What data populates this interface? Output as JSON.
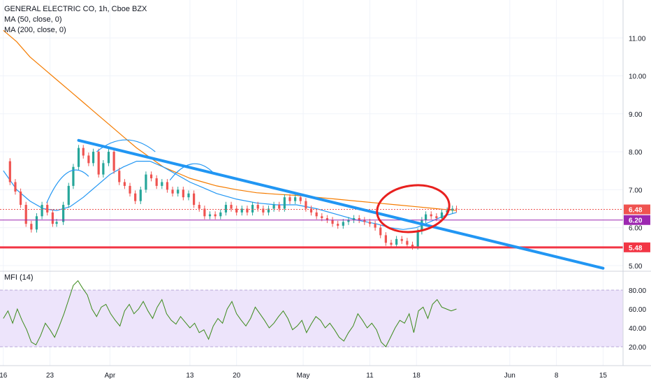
{
  "header": {
    "symbol_line": "GENERAL ELECTRIC CO, 1h, Cboe BZX",
    "ma50_label": "MA (50, close, 0)",
    "ma200_label": "MA (200, close, 0)",
    "mfi_label": "MFI (14)"
  },
  "colors": {
    "up": "#26a69a",
    "down": "#ef5350",
    "ma50": "#2196f3",
    "ma200": "#f57c00",
    "trendline": "#2196f3",
    "support": "#f23645",
    "purple": "#9c27b0",
    "mfi_line": "#3b8a1a",
    "mfi_band": "#ede4fb",
    "circle": "#e8201e"
  },
  "chart_data": [
    {
      "type": "candlestick",
      "ylim": [
        4.85,
        12.0
      ],
      "y_ticks": [
        "5.00",
        "6.00",
        "7.00",
        "8.00",
        "9.00",
        "10.00",
        "11.00"
      ],
      "y_tick_values": [
        5,
        6,
        7,
        8,
        9,
        10,
        11
      ],
      "x_ticks": [
        "16",
        "23",
        "Apr",
        "13",
        "20",
        "May",
        "11",
        "18",
        "Jun",
        "8",
        "15"
      ],
      "x_tick_days": [
        0,
        7,
        16,
        28,
        35,
        45,
        55,
        62,
        76,
        83,
        90
      ],
      "xlim_days": [
        -0.5,
        93
      ],
      "price_labels": [
        {
          "text": "6.48",
          "value": 6.48,
          "color": "#ef5350"
        },
        {
          "text": "6.20",
          "value": 6.2,
          "color": "#9c27b0"
        },
        {
          "text": "5.48",
          "value": 5.48,
          "color": "#f23645"
        }
      ],
      "horizontal_lines": [
        {
          "name": "support",
          "value": 5.48
        },
        {
          "name": "level",
          "value": 6.2
        },
        {
          "name": "last-price",
          "value": 6.48
        }
      ],
      "trendline": {
        "from": [
          11.3,
          8.3
        ],
        "to": [
          90.0,
          4.93
        ]
      },
      "close": [
        [
          0.0,
          7.75
        ],
        [
          1.0,
          7.2
        ],
        [
          1.8,
          6.95
        ],
        [
          2.6,
          6.6
        ],
        [
          3.4,
          6.1
        ],
        [
          4.2,
          5.95
        ],
        [
          5.0,
          6.3
        ],
        [
          5.8,
          6.6
        ],
        [
          6.6,
          6.4
        ],
        [
          7.4,
          6.1
        ],
        [
          8.0,
          6.15
        ],
        [
          9.0,
          6.6
        ],
        [
          9.8,
          7.1
        ],
        [
          10.5,
          7.6
        ],
        [
          11.3,
          8.1
        ],
        [
          12.0,
          7.9
        ],
        [
          12.8,
          7.7
        ],
        [
          13.5,
          8.0
        ],
        [
          14.3,
          7.4
        ],
        [
          15.0,
          7.7
        ],
        [
          15.8,
          8.0
        ],
        [
          16.6,
          7.5
        ],
        [
          17.4,
          7.2
        ],
        [
          18.2,
          7.1
        ],
        [
          19.0,
          6.9
        ],
        [
          19.8,
          6.7
        ],
        [
          20.6,
          7.0
        ],
        [
          21.4,
          7.4
        ],
        [
          22.2,
          7.3
        ],
        [
          23.0,
          7.1
        ],
        [
          23.8,
          7.2
        ],
        [
          24.6,
          7.0
        ],
        [
          25.4,
          6.9
        ],
        [
          26.2,
          7.0
        ],
        [
          27.0,
          6.8
        ],
        [
          27.8,
          6.9
        ],
        [
          28.6,
          6.6
        ],
        [
          29.4,
          6.5
        ],
        [
          30.2,
          6.3
        ],
        [
          31.0,
          6.35
        ],
        [
          31.8,
          6.3
        ],
        [
          32.6,
          6.4
        ],
        [
          33.4,
          6.6
        ],
        [
          34.2,
          6.5
        ],
        [
          35.0,
          6.4
        ],
        [
          35.8,
          6.5
        ],
        [
          36.6,
          6.4
        ],
        [
          37.4,
          6.6
        ],
        [
          38.2,
          6.5
        ],
        [
          39.0,
          6.4
        ],
        [
          39.8,
          6.5
        ],
        [
          40.6,
          6.6
        ],
        [
          41.4,
          6.5
        ],
        [
          42.2,
          6.8
        ],
        [
          43.0,
          6.7
        ],
        [
          43.8,
          6.8
        ],
        [
          44.6,
          6.7
        ],
        [
          45.4,
          6.5
        ],
        [
          46.2,
          6.4
        ],
        [
          47.0,
          6.3
        ],
        [
          47.8,
          6.25
        ],
        [
          48.6,
          6.2
        ],
        [
          49.4,
          6.1
        ],
        [
          50.2,
          6.05
        ],
        [
          51.0,
          6.15
        ],
        [
          51.8,
          6.2
        ],
        [
          52.6,
          6.25
        ],
        [
          53.4,
          6.2
        ],
        [
          54.2,
          6.15
        ],
        [
          55.0,
          6.1
        ],
        [
          55.8,
          6.0
        ],
        [
          56.6,
          5.8
        ],
        [
          57.4,
          5.6
        ],
        [
          58.2,
          5.55
        ],
        [
          59.0,
          5.7
        ],
        [
          59.8,
          5.65
        ],
        [
          60.6,
          5.55
        ],
        [
          61.4,
          5.5
        ],
        [
          62.2,
          5.9
        ],
        [
          62.8,
          6.2
        ],
        [
          63.4,
          6.35
        ],
        [
          64.2,
          6.3
        ],
        [
          65.0,
          6.25
        ],
        [
          65.8,
          6.4
        ],
        [
          66.6,
          6.45
        ],
        [
          67.4,
          6.5
        ],
        [
          68.0,
          6.48
        ]
      ],
      "ma50": [
        [
          0.0,
          7.5
        ],
        [
          2.0,
          7.0
        ],
        [
          4.0,
          6.7
        ],
        [
          6.0,
          6.5
        ],
        [
          8.0,
          6.45
        ],
        [
          10.0,
          6.55
        ],
        [
          12.0,
          6.8
        ],
        [
          14.0,
          7.1
        ],
        [
          16.0,
          7.4
        ],
        [
          18.0,
          7.6
        ],
        [
          20.0,
          7.75
        ],
        [
          22.0,
          7.75
        ],
        [
          24.0,
          7.6
        ],
        [
          26.0,
          7.4
        ],
        [
          28.0,
          7.2
        ],
        [
          30.0,
          7.05
        ],
        [
          32.0,
          6.9
        ],
        [
          35.0,
          6.75
        ],
        [
          38.0,
          6.65
        ],
        [
          41.0,
          6.6
        ],
        [
          44.0,
          6.6
        ],
        [
          47.0,
          6.5
        ],
        [
          50.0,
          6.35
        ],
        [
          53.0,
          6.2
        ],
        [
          56.0,
          6.1
        ],
        [
          58.0,
          6.0
        ],
        [
          60.0,
          5.95
        ],
        [
          62.0,
          6.0
        ],
        [
          64.0,
          6.15
        ],
        [
          66.0,
          6.3
        ],
        [
          68.0,
          6.4
        ]
      ],
      "ma200": [
        [
          0.0,
          11.2
        ],
        [
          2.0,
          10.9
        ],
        [
          4.0,
          10.5
        ],
        [
          6.0,
          10.2
        ],
        [
          8.0,
          9.9
        ],
        [
          10.0,
          9.6
        ],
        [
          12.0,
          9.3
        ],
        [
          14.0,
          9.0
        ],
        [
          16.0,
          8.7
        ],
        [
          18.0,
          8.4
        ],
        [
          20.0,
          8.1
        ],
        [
          22.0,
          7.85
        ],
        [
          24.0,
          7.6
        ],
        [
          26.0,
          7.45
        ],
        [
          28.0,
          7.3
        ],
        [
          30.0,
          7.2
        ],
        [
          32.0,
          7.1
        ],
        [
          35.0,
          7.0
        ],
        [
          38.0,
          6.92
        ],
        [
          41.0,
          6.88
        ],
        [
          44.0,
          6.85
        ],
        [
          47.0,
          6.8
        ],
        [
          50.0,
          6.75
        ],
        [
          53.0,
          6.7
        ],
        [
          56.0,
          6.65
        ],
        [
          59.0,
          6.6
        ],
        [
          62.0,
          6.55
        ],
        [
          65.0,
          6.5
        ],
        [
          68.0,
          6.45
        ]
      ]
    },
    {
      "type": "line",
      "name": "MFI (14)",
      "ylim": [
        0,
        100
      ],
      "y_ticks": [
        "20.00",
        "40.00",
        "60.00",
        "80.00"
      ],
      "y_tick_values": [
        20,
        40,
        60,
        80
      ],
      "band": [
        20,
        80
      ],
      "values": [
        [
          0.0,
          50
        ],
        [
          0.7,
          58
        ],
        [
          1.4,
          45
        ],
        [
          2.1,
          60
        ],
        [
          2.8,
          48
        ],
        [
          3.5,
          38
        ],
        [
          4.2,
          25
        ],
        [
          4.9,
          22
        ],
        [
          5.6,
          32
        ],
        [
          6.3,
          45
        ],
        [
          7.0,
          38
        ],
        [
          7.7,
          30
        ],
        [
          8.4,
          42
        ],
        [
          9.1,
          55
        ],
        [
          9.8,
          70
        ],
        [
          10.5,
          85
        ],
        [
          11.2,
          90
        ],
        [
          11.9,
          82
        ],
        [
          12.6,
          75
        ],
        [
          13.3,
          60
        ],
        [
          14.0,
          52
        ],
        [
          14.7,
          62
        ],
        [
          15.4,
          65
        ],
        [
          16.1,
          55
        ],
        [
          16.8,
          48
        ],
        [
          17.5,
          42
        ],
        [
          18.2,
          58
        ],
        [
          18.9,
          65
        ],
        [
          19.6,
          55
        ],
        [
          20.3,
          60
        ],
        [
          21.0,
          68
        ],
        [
          21.7,
          58
        ],
        [
          22.4,
          50
        ],
        [
          23.1,
          62
        ],
        [
          23.8,
          70
        ],
        [
          24.5,
          55
        ],
        [
          25.2,
          48
        ],
        [
          25.9,
          44
        ],
        [
          26.6,
          52
        ],
        [
          27.3,
          46
        ],
        [
          28.0,
          40
        ],
        [
          28.7,
          45
        ],
        [
          29.4,
          35
        ],
        [
          30.1,
          38
        ],
        [
          30.8,
          28
        ],
        [
          31.5,
          42
        ],
        [
          32.2,
          50
        ],
        [
          32.9,
          45
        ],
        [
          33.6,
          60
        ],
        [
          34.3,
          68
        ],
        [
          35.0,
          55
        ],
        [
          35.7,
          48
        ],
        [
          36.4,
          42
        ],
        [
          37.1,
          50
        ],
        [
          37.8,
          62
        ],
        [
          38.5,
          55
        ],
        [
          39.2,
          48
        ],
        [
          39.9,
          40
        ],
        [
          40.6,
          45
        ],
        [
          41.3,
          52
        ],
        [
          42.0,
          58
        ],
        [
          42.7,
          50
        ],
        [
          43.4,
          38
        ],
        [
          44.1,
          42
        ],
        [
          44.8,
          48
        ],
        [
          45.5,
          35
        ],
        [
          46.2,
          44
        ],
        [
          46.9,
          52
        ],
        [
          47.6,
          48
        ],
        [
          48.3,
          40
        ],
        [
          49.0,
          45
        ],
        [
          49.7,
          38
        ],
        [
          50.4,
          30
        ],
        [
          51.1,
          26
        ],
        [
          51.8,
          35
        ],
        [
          52.5,
          42
        ],
        [
          53.2,
          55
        ],
        [
          53.9,
          48
        ],
        [
          54.6,
          40
        ],
        [
          55.3,
          45
        ],
        [
          56.0,
          38
        ],
        [
          56.7,
          25
        ],
        [
          57.4,
          20
        ],
        [
          58.1,
          30
        ],
        [
          58.8,
          40
        ],
        [
          59.5,
          48
        ],
        [
          60.2,
          45
        ],
        [
          60.9,
          55
        ],
        [
          61.6,
          35
        ],
        [
          62.3,
          58
        ],
        [
          63.0,
          62
        ],
        [
          63.7,
          50
        ],
        [
          64.4,
          65
        ],
        [
          65.1,
          70
        ],
        [
          65.8,
          62
        ],
        [
          66.5,
          60
        ],
        [
          67.2,
          58
        ],
        [
          68.0,
          60
        ]
      ]
    }
  ]
}
